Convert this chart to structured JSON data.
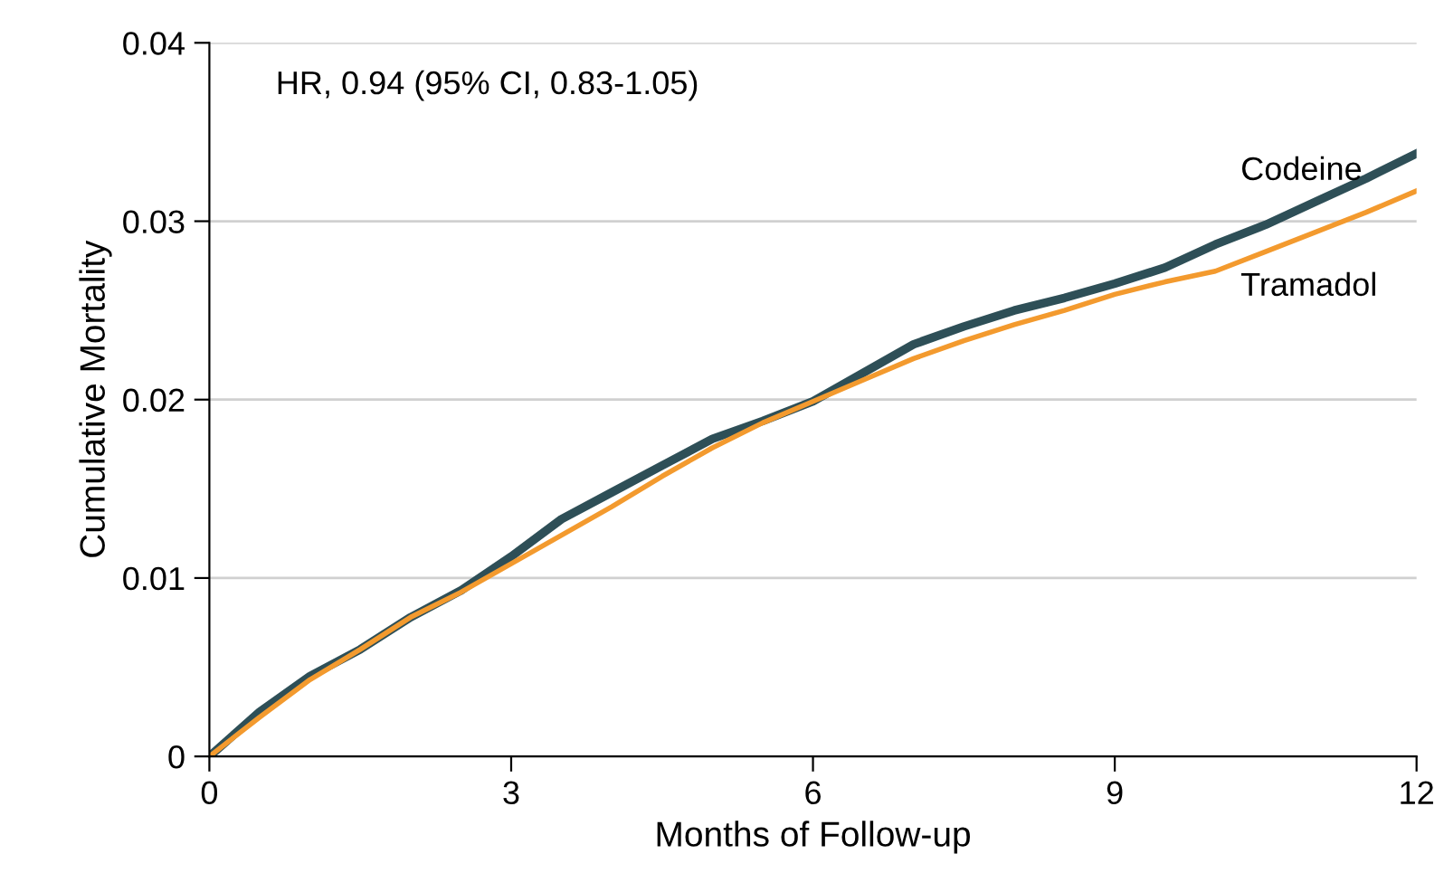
{
  "chart_data": {
    "type": "line",
    "xlabel": "Months of Follow-up",
    "ylabel": "Cumulative Mortality",
    "x": [
      0,
      0.5,
      1,
      1.5,
      2,
      2.5,
      3,
      3.5,
      4,
      4.5,
      5,
      5.5,
      6,
      6.5,
      7,
      7.5,
      8,
      8.5,
      9,
      9.5,
      10,
      10.5,
      11,
      11.5,
      12
    ],
    "series": [
      {
        "name": "Codeine",
        "color": "#2e4f57",
        "values": [
          0,
          0.0025,
          0.0045,
          0.006,
          0.0078,
          0.0093,
          0.0112,
          0.0133,
          0.0148,
          0.0163,
          0.0178,
          0.0188,
          0.0199,
          0.0215,
          0.0231,
          0.0241,
          0.025,
          0.0257,
          0.0265,
          0.0274,
          0.0287,
          0.0298,
          0.0311,
          0.0324,
          0.0338
        ]
      },
      {
        "name": "Tramadol",
        "color": "#f39a2e",
        "values": [
          0,
          0.0022,
          0.0043,
          0.006,
          0.0078,
          0.0092,
          0.0108,
          0.0124,
          0.014,
          0.0157,
          0.0173,
          0.0187,
          0.0199,
          0.0211,
          0.0223,
          0.0233,
          0.0242,
          0.025,
          0.0259,
          0.0266,
          0.0272,
          0.0283,
          0.0294,
          0.0305,
          0.0317
        ]
      }
    ],
    "xlim": [
      0,
      12
    ],
    "xticks": [
      0,
      3,
      6,
      9,
      12
    ],
    "ylim": [
      0,
      0.04
    ],
    "yticks": [
      0,
      0.01,
      0.02,
      0.03,
      0.04
    ],
    "grid": "y",
    "legend": false,
    "annotations": [
      {
        "text": "HR, 0.94 (95% CI, 0.83-1.05)"
      }
    ]
  }
}
